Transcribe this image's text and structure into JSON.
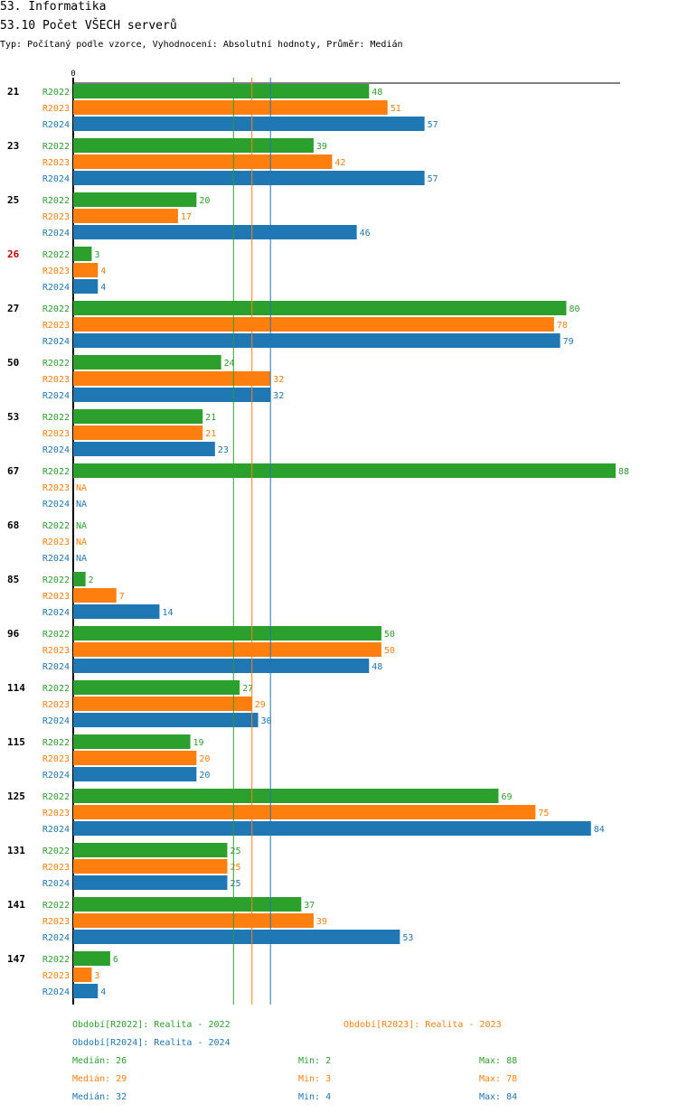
{
  "header": {
    "title": "53. Informatika",
    "subtitle": "53.10 Počet VŠECH serverů",
    "typeline": "Typ: Počítaný podle vzorce, Vyhodnocení: Absolutní hodnoty, Průměr: Medián"
  },
  "chart_data": {
    "type": "bar",
    "orientation": "horizontal",
    "x_tick_label": "0",
    "xlim": [
      0,
      88
    ],
    "categories": [
      "21",
      "23",
      "25",
      "26",
      "27",
      "50",
      "53",
      "67",
      "68",
      "85",
      "96",
      "114",
      "115",
      "125",
      "131",
      "141",
      "147"
    ],
    "highlighted_category": "26",
    "na_label": "NA",
    "series": [
      {
        "name": "R2022",
        "color": "#2ca02c",
        "values": [
          48,
          39,
          20,
          3,
          80,
          24,
          21,
          88,
          null,
          2,
          50,
          27,
          19,
          69,
          25,
          37,
          6
        ]
      },
      {
        "name": "R2023",
        "color": "#ff7f0e",
        "values": [
          51,
          42,
          17,
          4,
          78,
          32,
          21,
          null,
          null,
          7,
          50,
          29,
          20,
          75,
          25,
          39,
          3
        ]
      },
      {
        "name": "R2024",
        "color": "#1f77b4",
        "values": [
          57,
          57,
          46,
          4,
          79,
          32,
          23,
          null,
          null,
          14,
          48,
          30,
          20,
          84,
          25,
          53,
          4
        ]
      }
    ],
    "reference_lines": [
      {
        "series": "R2022",
        "value": 26
      },
      {
        "series": "R2023",
        "value": 29
      },
      {
        "series": "R2024",
        "value": 32
      }
    ]
  },
  "legend": {
    "r2022": "Období[R2022]: Realita - 2022",
    "r2023": "Období[R2023]: Realita - 2023",
    "r2024": "Období[R2024]: Realita - 2024"
  },
  "stats": [
    {
      "median": "Medián: 26",
      "min": "Min: 2",
      "max": "Max: 88"
    },
    {
      "median": "Medián: 29",
      "min": "Min: 3",
      "max": "Max: 78"
    },
    {
      "median": "Medián: 32",
      "min": "Min: 4",
      "max": "Max: 84"
    }
  ],
  "colors": {
    "r2022": "#2ca02c",
    "r2023": "#ff7f0e",
    "r2024": "#1f77b4",
    "highlight": "#cc0000"
  }
}
